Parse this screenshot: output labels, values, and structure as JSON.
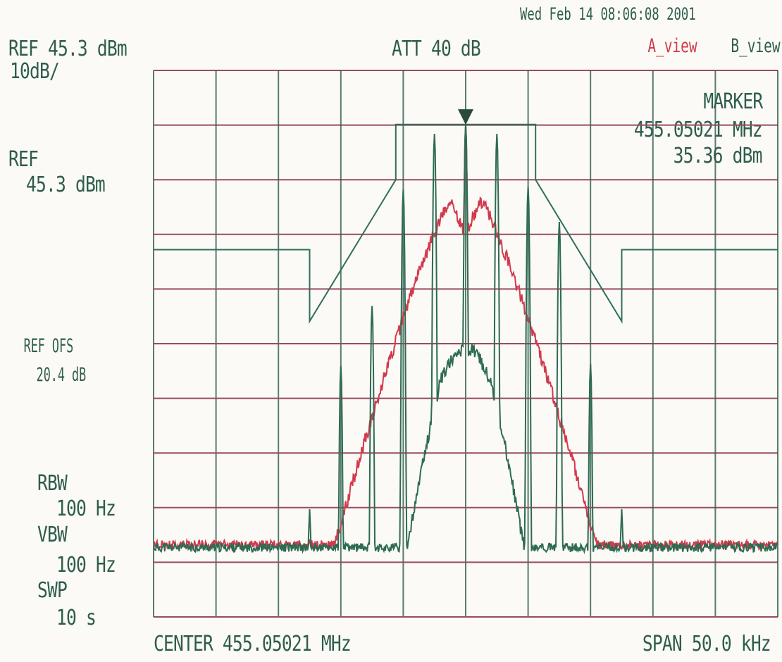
{
  "header": {
    "timestamp": "Wed Feb 14 08:06:08 2001",
    "ref_level": "REF 45.3 dBm",
    "scale": "10dB/",
    "attenuation": "ATT 40 dB",
    "view_a": "A_view",
    "view_b": "B_view"
  },
  "marker": {
    "title": "MARKER",
    "frequency": "455.05021 MHz",
    "level": "35.36 dBm"
  },
  "left_panel": {
    "ref_label": "REF",
    "ref_value": "45.3 dBm",
    "ref_offset_label": "REF OFS",
    "ref_offset_value": "20.4 dB",
    "rbw_label": "RBW",
    "rbw_value": "100 Hz",
    "vbw_label": "VBW",
    "vbw_value": "100 Hz",
    "sweep_label": "SWP",
    "sweep_value": "10 s"
  },
  "footer": {
    "center": "CENTER 455.05021 MHz",
    "span": "SPAN 50.0 kHz"
  },
  "colors": {
    "grid_h": "#9a4a63",
    "grid_v": "#2f5d4c",
    "trace_a": "#d23a4c",
    "trace_b": "#2e6b52",
    "mask": "#2f6e5a",
    "marker": "#2a4a3c"
  },
  "chart_data": {
    "type": "line",
    "x_unit": "kHz offset from center",
    "y_unit": "dBm",
    "xlim": [
      -25,
      25
    ],
    "ylim": [
      -54.7,
      45.3
    ],
    "grid": true,
    "marker_point": {
      "x": 0,
      "y": 35.36
    },
    "mask": {
      "x": [
        -25,
        -12.5,
        -12.5,
        -5.6,
        -5.6,
        5.6,
        5.6,
        12.5,
        12.5,
        25
      ],
      "y": [
        12.5,
        12.5,
        -0.6,
        25.3,
        35.4,
        35.4,
        25.3,
        -0.6,
        12.5,
        12.5
      ]
    },
    "series": [
      {
        "name": "A_view",
        "color": "#d23a4c",
        "floor": -41.5,
        "noise": 0.8,
        "envelope_peak": 21.5,
        "envelope_dips": [
          -7.5,
          0
        ],
        "peaks": [
          [
            0,
            35.36
          ]
        ]
      },
      {
        "name": "B_view",
        "color": "#2e6b52",
        "floor": -42,
        "noise": 0.8,
        "envelope_peak": 2,
        "peaks": [
          [
            -12.5,
            -35
          ],
          [
            -10,
            -8.8
          ],
          [
            -7.5,
            2.2
          ],
          [
            -5,
            23.5
          ],
          [
            -2.5,
            33.7
          ],
          [
            0,
            35.36
          ],
          [
            2.5,
            33.7
          ],
          [
            5,
            24
          ],
          [
            7.5,
            17.6
          ],
          [
            10,
            -8.4
          ],
          [
            12.5,
            -35
          ]
        ]
      }
    ]
  }
}
